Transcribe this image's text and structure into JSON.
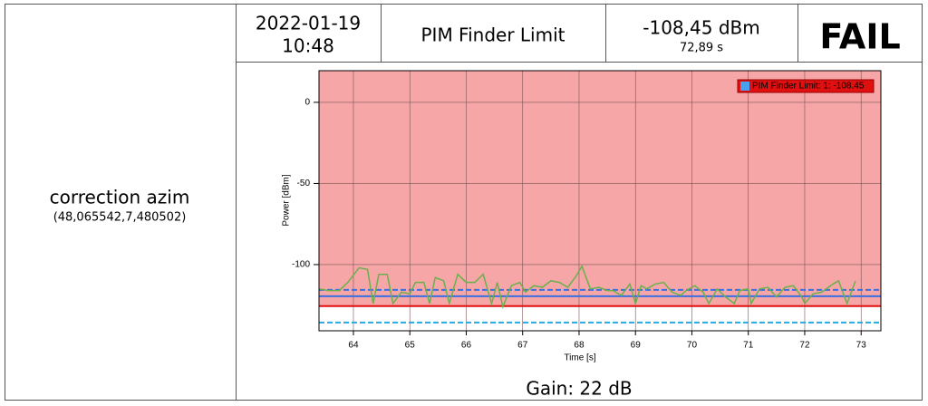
{
  "row": {
    "label": "correction azim",
    "coordinates": "(48,065542,7,480502)",
    "date": "2022-01-19",
    "time": "10:48",
    "test_name": "PIM Finder Limit",
    "measured": "-108,45 dBm",
    "measured_time": "72,89 s",
    "result": "FAIL",
    "gain": "Gain: 22 dB"
  },
  "chart_data": {
    "type": "line",
    "x_label": "Time [s]",
    "y_label": "Power [dBm]",
    "xlim": [
      63.39,
      73.35
    ],
    "xticks": [
      64,
      65,
      66,
      67,
      68,
      69,
      70,
      71,
      72,
      73
    ],
    "ylim": [
      -140.8,
      19.5
    ],
    "yticks": [
      0,
      -50,
      -100
    ],
    "grid": true,
    "legend": "top-right",
    "series": [
      {
        "name": "PIM Finder Limit: 1: -108.45",
        "color": "#6ab04c",
        "x": [
          63.4,
          63.55,
          63.75,
          63.9,
          64.1,
          64.25,
          64.35,
          64.45,
          64.6,
          64.7,
          64.85,
          65.0,
          65.1,
          65.25,
          65.35,
          65.45,
          65.6,
          65.7,
          65.85,
          66.0,
          66.15,
          66.3,
          66.45,
          66.55,
          66.65,
          66.8,
          66.95,
          67.05,
          67.2,
          67.35,
          67.5,
          67.65,
          67.8,
          67.95,
          68.05,
          68.2,
          68.35,
          68.5,
          68.6,
          68.75,
          68.9,
          69.0,
          69.1,
          69.2,
          69.35,
          69.5,
          69.65,
          69.8,
          69.9,
          70.05,
          70.2,
          70.3,
          70.45,
          70.6,
          70.75,
          70.85,
          71.0,
          71.05,
          71.2,
          71.35,
          71.5,
          71.65,
          71.8,
          71.95,
          72.0,
          72.15,
          72.3,
          72.5,
          72.6,
          72.75,
          72.9
        ],
        "values": [
          -115,
          -116,
          -116,
          -111,
          -102,
          -103,
          -124,
          -106,
          -106,
          -124,
          -117,
          -118,
          -111,
          -111,
          -124,
          -108,
          -110,
          -124,
          -106,
          -111,
          -111,
          -106,
          -124,
          -111,
          -126,
          -113,
          -111,
          -117,
          -113,
          -114,
          -110,
          -111,
          -114,
          -107,
          -101,
          -115,
          -114,
          -116,
          -116,
          -119,
          -112,
          -124,
          -113,
          -115,
          -112,
          -111,
          -117,
          -119,
          -116,
          -113,
          -117,
          -124,
          -115,
          -120,
          -124,
          -116,
          -115,
          -124,
          -115,
          -114,
          -120,
          -114,
          -113,
          -120,
          -124,
          -118,
          -117,
          -112,
          -110,
          -124,
          -110
        ]
      }
    ],
    "reference_lines": [
      {
        "value": -115.6,
        "color": "#3b6fe0",
        "style": "dashed"
      },
      {
        "value": -119.5,
        "color": "#3b6fe0",
        "style": "solid"
      },
      {
        "value": -125.6,
        "color": "#e01010",
        "style": "solid",
        "fill_above": "#f6a6a6"
      },
      {
        "value": -135.7,
        "color": "#2aa8e0",
        "style": "dashed"
      }
    ]
  }
}
